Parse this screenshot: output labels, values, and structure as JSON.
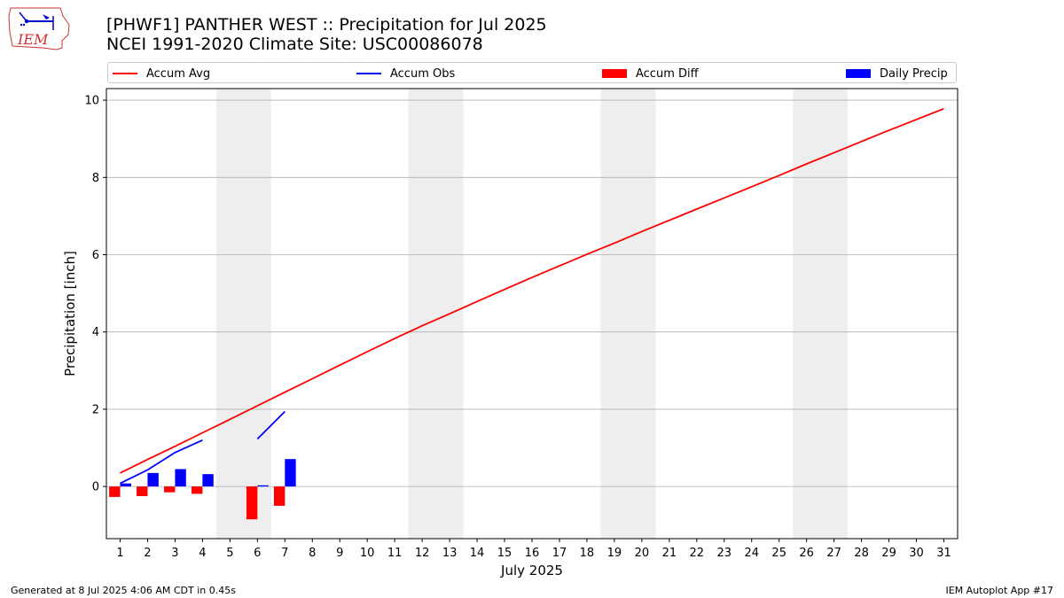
{
  "header": {
    "title_line1": "[PHWF1] PANTHER WEST :: Precipitation for Jul 2025",
    "title_line2": "NCEI 1991-2020 Climate Site: USC00086078",
    "logo_text": "IEM"
  },
  "footer": {
    "left": "Generated at 8 Jul 2025 4:06 AM CDT in 0.45s",
    "right": "IEM Autoplot App #17"
  },
  "colors": {
    "accum_avg": "#ff0000",
    "accum_obs": "#0000ff",
    "accum_diff": "#ff0000",
    "daily_precip": "#0000ff",
    "weekend_band": "#eeeeee",
    "grid": "#b0b0b0"
  },
  "chart_data": {
    "type": "bar",
    "xlabel": "July 2025",
    "ylabel": "Precipitation [inch]",
    "xlim": [
      0.5,
      31.5
    ],
    "ylim": [
      -1.35,
      10.3
    ],
    "yticks": [
      0,
      2,
      4,
      6,
      8,
      10
    ],
    "grid": "horizontal",
    "legend_position": "top",
    "days": [
      1,
      2,
      3,
      4,
      5,
      6,
      7,
      8,
      9,
      10,
      11,
      12,
      13,
      14,
      15,
      16,
      17,
      18,
      19,
      20,
      21,
      22,
      23,
      24,
      25,
      26,
      27,
      28,
      29,
      30,
      31
    ],
    "weekend_days": [
      5,
      6,
      12,
      13,
      19,
      20,
      26,
      27
    ],
    "legend": [
      {
        "label": "Accum Avg",
        "kind": "line",
        "color": "#ff0000"
      },
      {
        "label": "Accum Obs",
        "kind": "line",
        "color": "#0000ff"
      },
      {
        "label": "Accum Diff",
        "kind": "bar",
        "color": "#ff0000"
      },
      {
        "label": "Daily Precip",
        "kind": "bar",
        "color": "#0000ff"
      }
    ],
    "series": [
      {
        "name": "Accum Avg",
        "type": "line",
        "color": "#ff0000",
        "values": [
          0.35,
          0.7,
          1.04,
          1.39,
          1.74,
          2.09,
          2.44,
          2.79,
          3.14,
          3.49,
          3.83,
          4.16,
          4.47,
          4.79,
          5.1,
          5.41,
          5.71,
          6.01,
          6.3,
          6.6,
          6.89,
          7.18,
          7.47,
          7.76,
          8.05,
          8.35,
          8.64,
          8.93,
          9.22,
          9.5,
          9.78
        ]
      },
      {
        "name": "Accum Obs",
        "type": "line",
        "color": "#0000ff",
        "values": [
          0.08,
          0.43,
          0.88,
          1.2,
          null,
          1.23,
          1.94,
          null,
          null,
          null,
          null,
          null,
          null,
          null,
          null,
          null,
          null,
          null,
          null,
          null,
          null,
          null,
          null,
          null,
          null,
          null,
          null,
          null,
          null,
          null,
          null
        ]
      },
      {
        "name": "Accum Diff",
        "type": "bar",
        "color": "#ff0000",
        "values": [
          -0.27,
          -0.25,
          -0.15,
          -0.19,
          null,
          -0.85,
          -0.5,
          null,
          null,
          null,
          null,
          null,
          null,
          null,
          null,
          null,
          null,
          null,
          null,
          null,
          null,
          null,
          null,
          null,
          null,
          null,
          null,
          null,
          null,
          null,
          null
        ]
      },
      {
        "name": "Daily Precip",
        "type": "bar",
        "color": "#0000ff",
        "values": [
          0.08,
          0.35,
          0.45,
          0.32,
          null,
          0.03,
          0.71,
          null,
          null,
          null,
          null,
          null,
          null,
          null,
          null,
          null,
          null,
          null,
          null,
          null,
          null,
          null,
          null,
          null,
          null,
          null,
          null,
          null,
          null,
          null,
          null
        ]
      }
    ]
  }
}
